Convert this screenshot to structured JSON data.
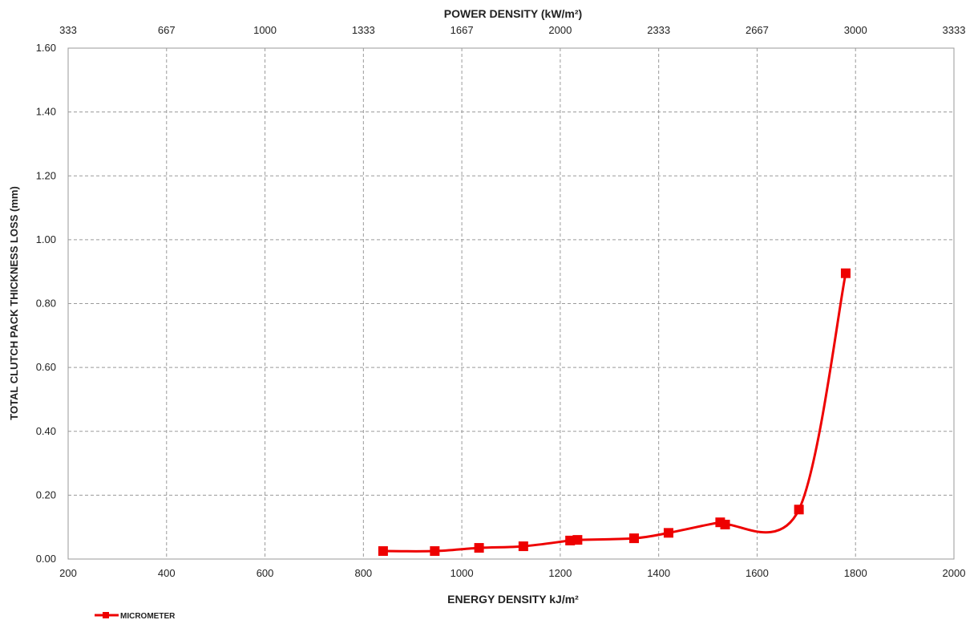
{
  "chart_data": {
    "type": "scatter",
    "title": "",
    "xlabel": "ENERGY DENSITY kJ/m²",
    "ylabel": "TOTAL CLUTCH PACK THICKNESS LOSS (mm)",
    "secondary_xlabel": "POWER DENSITY (kW/m²)",
    "xlim": [
      200,
      2000
    ],
    "ylim": [
      0,
      1.6
    ],
    "x_ticks": [
      "200",
      "400",
      "600",
      "800",
      "1000",
      "1200",
      "1400",
      "1600",
      "1800",
      "2000"
    ],
    "y_ticks": [
      "0.00",
      "0.20",
      "0.40",
      "0.60",
      "0.80",
      "1.00",
      "1.20",
      "1.40",
      "1.60"
    ],
    "secondary_x_ticks": [
      "333",
      "667",
      "1000",
      "1333",
      "1667",
      "2000",
      "2333",
      "2667",
      "3000",
      "3333"
    ],
    "grid": true,
    "legend": "bottom-left",
    "series": [
      {
        "name": "MICROMETER",
        "color": "#ee0000",
        "marker": "square",
        "smooth": true,
        "x": [
          840,
          945,
          1035,
          1125,
          1220,
          1235,
          1350,
          1420,
          1525,
          1535,
          1685,
          1780
        ],
        "y": [
          0.025,
          0.025,
          0.035,
          0.04,
          0.058,
          0.06,
          0.065,
          0.082,
          0.115,
          0.108,
          0.155,
          0.895
        ]
      }
    ]
  }
}
